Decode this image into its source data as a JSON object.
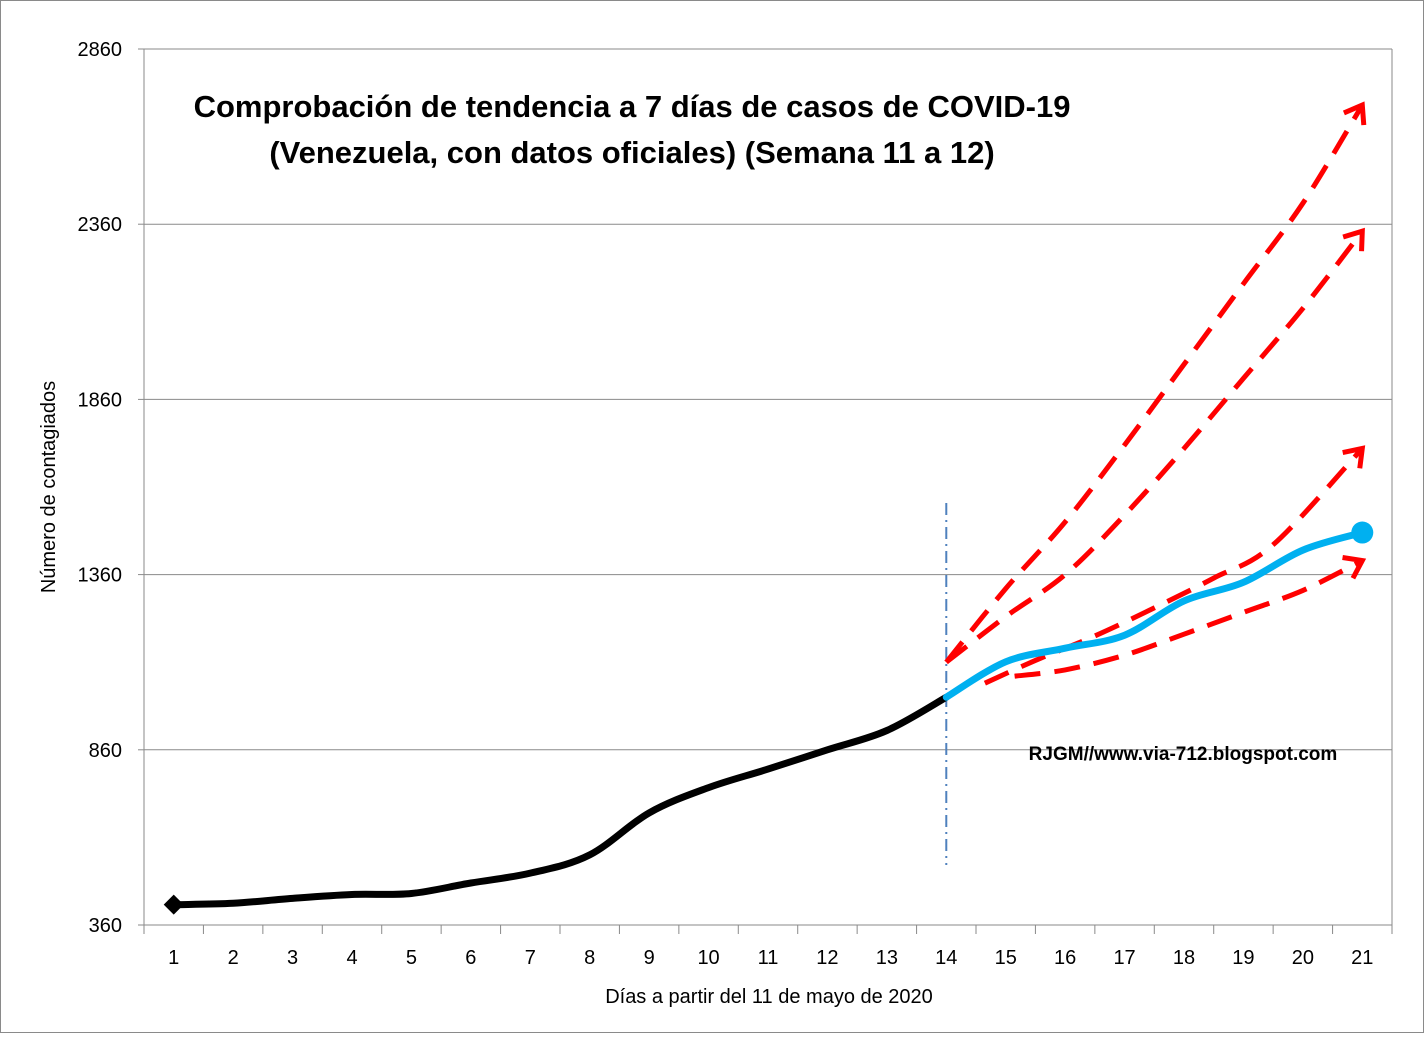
{
  "chart_data": {
    "type": "line",
    "title_line1": "Comprobación de tendencia a 7 días de casos de COVID-19",
    "title_line2": "(Venezuela, con datos oficiales) (Semana 11 a 12)",
    "xlabel": "Días a partir del  11 de mayo de 2020",
    "ylabel": "Número de contagiados",
    "watermark": "RJGM//www.via-712.blogspot.com",
    "x_ticks": [
      "1",
      "2",
      "3",
      "4",
      "5",
      "6",
      "7",
      "8",
      "9",
      "10",
      "11",
      "12",
      "13",
      "14",
      "15",
      "16",
      "17",
      "18",
      "19",
      "20",
      "21"
    ],
    "y_ticks": [
      "360",
      "860",
      "1360",
      "1860",
      "2360",
      "2860"
    ],
    "ylim": [
      360,
      2860
    ],
    "grid": true,
    "divider_at_day": 14,
    "series": [
      {
        "color": "#000000",
        "marker": "diamond-start",
        "x": [
          1,
          2,
          3,
          4,
          5,
          6,
          7,
          8,
          9,
          10,
          11,
          12,
          13,
          14
        ],
        "values": [
          418,
          422,
          436,
          447,
          450,
          480,
          508,
          560,
          680,
          752,
          805,
          860,
          915,
          1010
        ]
      },
      {
        "color": "#00b0f0",
        "marker": "circle-end",
        "x": [
          14,
          15,
          16,
          17,
          18,
          19,
          20,
          21
        ],
        "values": [
          1010,
          1111,
          1150,
          1187,
          1285,
          1338,
          1430,
          1480
        ]
      }
    ],
    "projections": [
      {
        "color": "#ff0000",
        "style": "dashed-arrow",
        "x": [
          15.15,
          16,
          17,
          18,
          19,
          20,
          21
        ],
        "values": [
          1070,
          1088,
          1130,
          1190,
          1252,
          1315,
          1400
        ]
      },
      {
        "color": "#ff0000",
        "style": "dashed-arrow",
        "x": [
          14.65,
          15.5,
          16.5,
          17.5,
          18.5,
          19.5,
          21
        ],
        "values": [
          1050,
          1115,
          1185,
          1265,
          1350,
          1445,
          1720
        ]
      },
      {
        "color": "#ff0000",
        "style": "dashed-arrow",
        "x": [
          14,
          15,
          16,
          17,
          18,
          19,
          20,
          21
        ],
        "values": [
          1110,
          1240,
          1360,
          1530,
          1720,
          1920,
          2120,
          2340
        ]
      },
      {
        "color": "#ff0000",
        "style": "dashed-arrow",
        "x": [
          14,
          15,
          16,
          17,
          18,
          19,
          20,
          21
        ],
        "values": [
          1110,
          1320,
          1510,
          1730,
          1960,
          2190,
          2420,
          2700
        ]
      }
    ]
  }
}
